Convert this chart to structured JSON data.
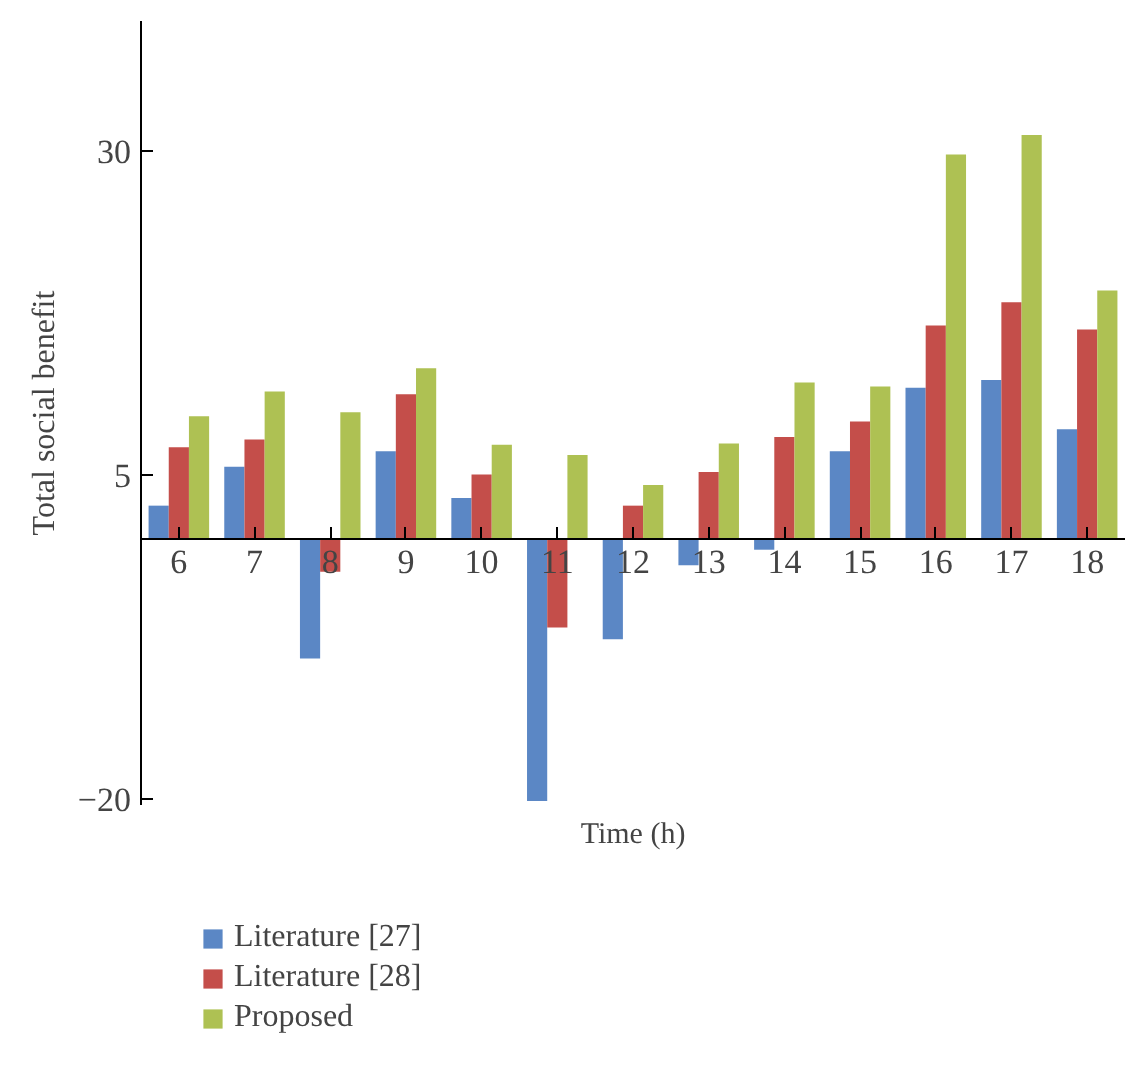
{
  "chart_data": {
    "type": "bar",
    "xlabel": "Time (h)",
    "ylabel": "Total social benefit",
    "categories": [
      "6",
      "7",
      "8",
      "9",
      "10",
      "11",
      "12",
      "13",
      "14",
      "15",
      "16",
      "17",
      "18"
    ],
    "series": [
      {
        "name": "Literature [27]",
        "color": "#5b87c5",
        "values": [
          2.6,
          5.6,
          -9.2,
          6.8,
          3.2,
          -20.2,
          -7.7,
          -2.0,
          -0.8,
          6.8,
          11.7,
          12.3,
          8.5
        ]
      },
      {
        "name": "Literature [28]",
        "color": "#c44e4a",
        "values": [
          7.1,
          7.7,
          -2.5,
          11.2,
          5.0,
          -6.8,
          2.6,
          5.2,
          7.9,
          9.1,
          16.5,
          18.3,
          16.2
        ]
      },
      {
        "name": "Proposed",
        "color": "#aec153",
        "values": [
          9.5,
          11.4,
          9.8,
          13.2,
          7.3,
          6.5,
          4.2,
          7.4,
          12.1,
          11.8,
          29.7,
          31.2,
          19.2
        ]
      }
    ],
    "ylim": [
      -20.5,
      40
    ],
    "yticks": [
      -20,
      5,
      30
    ],
    "grid": false,
    "legend": "bottom left"
  }
}
